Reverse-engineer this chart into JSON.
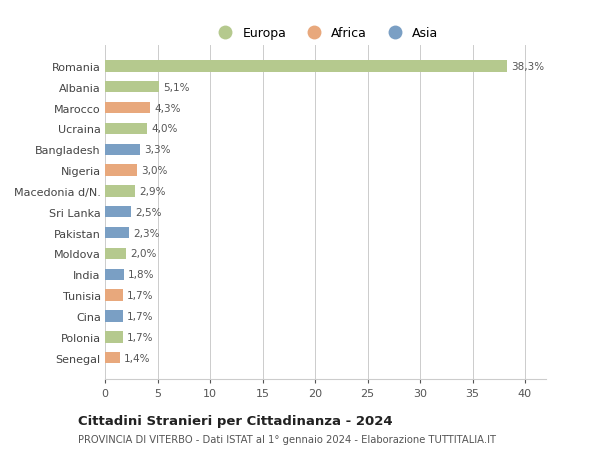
{
  "countries": [
    "Romania",
    "Albania",
    "Marocco",
    "Ucraina",
    "Bangladesh",
    "Nigeria",
    "Macedonia d/N.",
    "Sri Lanka",
    "Pakistan",
    "Moldova",
    "India",
    "Tunisia",
    "Cina",
    "Polonia",
    "Senegal"
  ],
  "values": [
    38.3,
    5.1,
    4.3,
    4.0,
    3.3,
    3.0,
    2.9,
    2.5,
    2.3,
    2.0,
    1.8,
    1.7,
    1.7,
    1.7,
    1.4
  ],
  "labels": [
    "38,3%",
    "5,1%",
    "4,3%",
    "4,0%",
    "3,3%",
    "3,0%",
    "2,9%",
    "2,5%",
    "2,3%",
    "2,0%",
    "1,8%",
    "1,7%",
    "1,7%",
    "1,7%",
    "1,4%"
  ],
  "colors": [
    "#b5c98e",
    "#b5c98e",
    "#e8a87c",
    "#b5c98e",
    "#7a9fc4",
    "#e8a87c",
    "#b5c98e",
    "#7a9fc4",
    "#7a9fc4",
    "#b5c98e",
    "#7a9fc4",
    "#e8a87c",
    "#7a9fc4",
    "#b5c98e",
    "#e8a87c"
  ],
  "legend_labels": [
    "Europa",
    "Africa",
    "Asia"
  ],
  "legend_colors": [
    "#b5c98e",
    "#e8a87c",
    "#7a9fc4"
  ],
  "xlim": [
    0,
    42
  ],
  "xticks": [
    0,
    5,
    10,
    15,
    20,
    25,
    30,
    35,
    40
  ],
  "title": "Cittadini Stranieri per Cittadinanza - 2024",
  "subtitle": "PROVINCIA DI VITERBO - Dati ISTAT al 1° gennaio 2024 - Elaborazione TUTTITALIA.IT",
  "bg_color": "#ffffff",
  "grid_color": "#cccccc",
  "bar_height": 0.55
}
